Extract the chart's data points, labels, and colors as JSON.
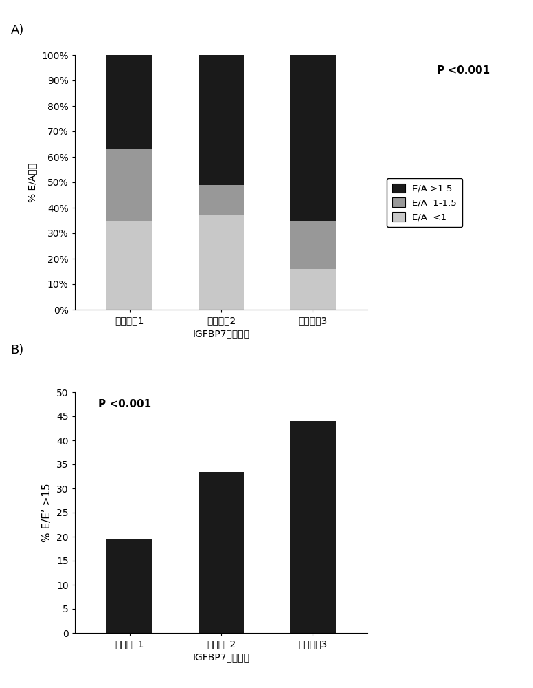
{
  "panel_A": {
    "categories": [
      "三分位数1",
      "三分位数2",
      "三分位数3"
    ],
    "xlabel": "IGFBP7三分位数",
    "ylabel": "% E/A类别",
    "p_text": "P <0.001",
    "ylim": [
      0,
      1.0
    ],
    "yticks": [
      0.0,
      0.1,
      0.2,
      0.3,
      0.4,
      0.5,
      0.6,
      0.7,
      0.8,
      0.9,
      1.0
    ],
    "yticklabels": [
      "0%",
      "10%",
      "20%",
      "30%",
      "40%",
      "50%",
      "60%",
      "70%",
      "80%",
      "90%",
      "100%"
    ],
    "segments": {
      "ea_lt1": [
        0.35,
        0.37,
        0.16
      ],
      "ea_1_15": [
        0.28,
        0.12,
        0.19
      ],
      "ea_gt15": [
        0.37,
        0.51,
        0.65
      ]
    },
    "colors": {
      "ea_lt1": "#c8c8c8",
      "ea_1_15": "#989898",
      "ea_gt15": "#1a1a1a"
    },
    "legend_labels": [
      "E/A >1.5",
      "E/A  1-1.5",
      "E/A  <1"
    ],
    "legend_colors": [
      "#1a1a1a",
      "#989898",
      "#c8c8c8"
    ],
    "bar_width": 0.5
  },
  "panel_B": {
    "categories": [
      "三分位数1",
      "三分位数2",
      "三分位数3"
    ],
    "values": [
      19.5,
      33.5,
      44.0
    ],
    "xlabel": "IGFBP7三分位数",
    "ylabel": "% E/E’ >15",
    "p_text": "P <0.001",
    "ylim": [
      0,
      50
    ],
    "yticks": [
      0,
      5,
      10,
      15,
      20,
      25,
      30,
      35,
      40,
      45,
      50
    ],
    "bar_color": "#1a1a1a",
    "bar_width": 0.5
  },
  "background_color": "#ffffff",
  "font_size_label": 11,
  "font_size_tick": 10,
  "font_size_panel": 13
}
